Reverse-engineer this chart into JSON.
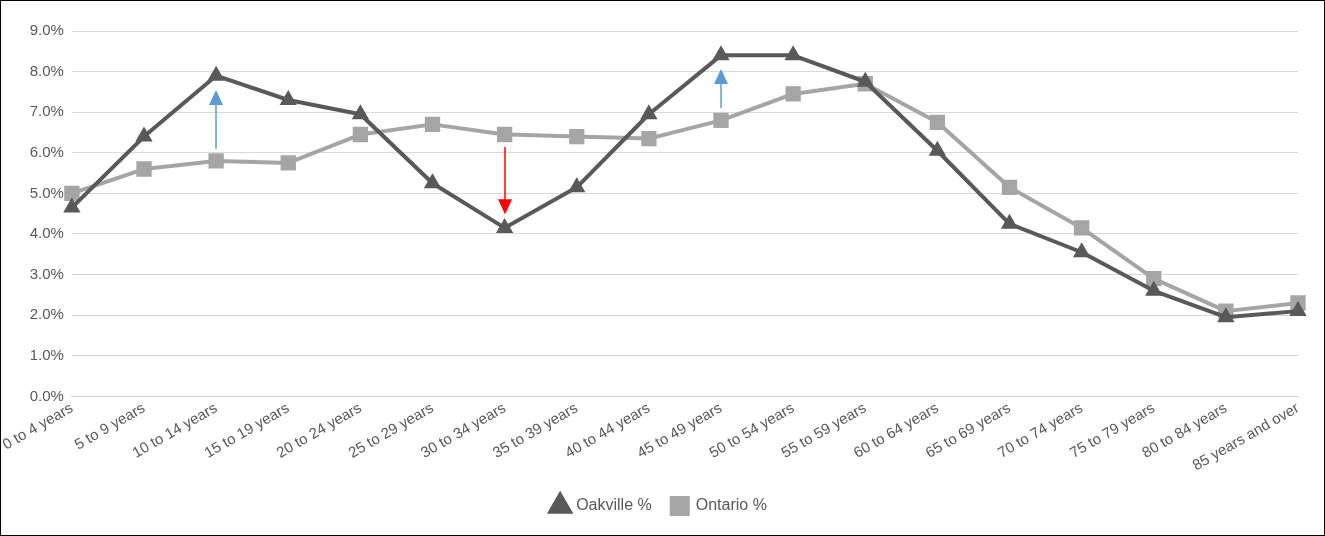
{
  "chart_data": {
    "type": "line",
    "categories": [
      "0 to 4 years",
      "5 to 9 years",
      "10 to 14 years",
      "15 to 19 years",
      "20 to 24 years",
      "25 to 29 years",
      "30 to 34 years",
      "35 to 39 years",
      "40 to 44 years",
      "45 to 49 years",
      "50 to 54 years",
      "55 to 59 years",
      "60 to 64 years",
      "65 to 69 years",
      "70 to 74 years",
      "75 to 79 years",
      "80 to 84 years",
      "85 years and over"
    ],
    "series": [
      {
        "name": "Oakville %",
        "color": "#595959",
        "marker": "triangle",
        "values": [
          4.65,
          6.4,
          7.9,
          7.3,
          6.95,
          5.25,
          4.15,
          5.15,
          6.95,
          8.4,
          8.4,
          7.75,
          6.05,
          4.25,
          3.55,
          2.6,
          1.95,
          2.1
        ]
      },
      {
        "name": "Ontario %",
        "color": "#a5a5a5",
        "marker": "square",
        "values": [
          5.0,
          5.6,
          5.8,
          5.75,
          6.45,
          6.7,
          6.45,
          6.4,
          6.35,
          6.8,
          7.45,
          7.7,
          6.75,
          5.15,
          4.15,
          2.9,
          2.1,
          2.3
        ]
      }
    ],
    "ylim": [
      0,
      9
    ],
    "yticks": [
      {
        "value": 0,
        "label": "0.0%"
      },
      {
        "value": 1,
        "label": "1.0%"
      },
      {
        "value": 2,
        "label": "2.0%"
      },
      {
        "value": 3,
        "label": "3.0%"
      },
      {
        "value": 4,
        "label": "4.0%"
      },
      {
        "value": 5,
        "label": "5.0%"
      },
      {
        "value": 6,
        "label": "6.0%"
      },
      {
        "value": 7,
        "label": "7.0%"
      },
      {
        "value": 8,
        "label": "8.0%"
      },
      {
        "value": 9,
        "label": "9.0%"
      }
    ],
    "grid": "y",
    "legend": "bottom",
    "line_style": "solid"
  }
}
